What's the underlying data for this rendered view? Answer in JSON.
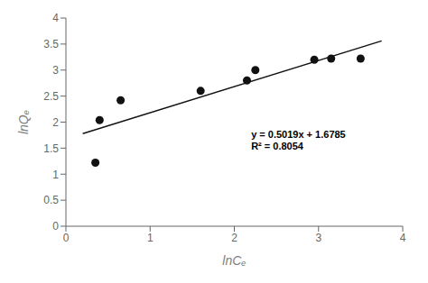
{
  "chart_data": {
    "type": "scatter",
    "xlabel": "lnCₑ",
    "ylabel": "lnQₑ",
    "xlim": [
      0,
      4
    ],
    "ylim": [
      0,
      4
    ],
    "xticks": [
      0,
      1,
      2,
      3,
      4
    ],
    "yticks": [
      0,
      0.5,
      1,
      1.5,
      2,
      2.5,
      3,
      3.5,
      4
    ],
    "grid": false,
    "series": [
      {
        "type": "scatter",
        "color": "#111111",
        "x": [
          0.35,
          0.4,
          0.65,
          1.6,
          2.15,
          2.25,
          2.95,
          3.15,
          3.5
        ],
        "values": [
          1.22,
          2.04,
          2.42,
          2.6,
          2.8,
          3.0,
          3.2,
          3.22,
          3.22
        ]
      },
      {
        "type": "line",
        "color": "#111111",
        "x": [
          0.2,
          3.75
        ],
        "values": [
          1.77888,
          3.560625
        ]
      }
    ],
    "annotations": [
      {
        "lines": [
          "y = 0.5019x + 1.6785",
          "R² = 0.8054"
        ],
        "x": 2.2,
        "y": 1.65
      }
    ]
  }
}
